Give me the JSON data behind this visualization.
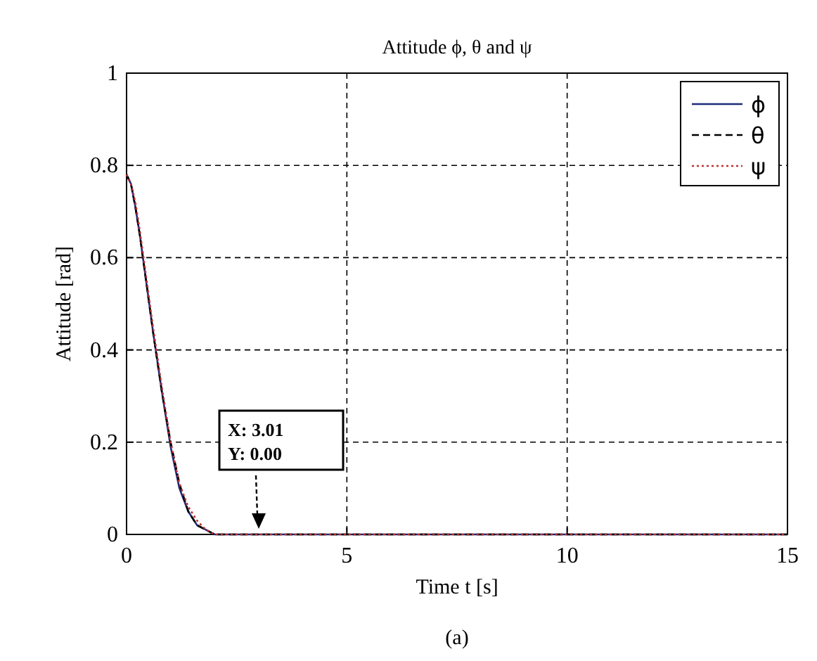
{
  "chart_data": {
    "type": "line",
    "title": "Attitude ϕ, θ and ψ",
    "xlabel": "Time  t [s]",
    "ylabel": "Attitude [rad]",
    "x": [
      0,
      0.1,
      0.2,
      0.3,
      0.4,
      0.6,
      0.8,
      1.0,
      1.2,
      1.4,
      1.6,
      1.8,
      2.0,
      2.2,
      2.5,
      3,
      5,
      10,
      15
    ],
    "series": [
      {
        "name": "ϕ",
        "color": "#1f2a7a",
        "line_style": "solid",
        "values": [
          0.78,
          0.76,
          0.71,
          0.65,
          0.58,
          0.44,
          0.31,
          0.19,
          0.1,
          0.05,
          0.02,
          0.01,
          0,
          0,
          0,
          0,
          0,
          0,
          0
        ]
      },
      {
        "name": "θ",
        "color": "#000000",
        "line_style": "dashed",
        "values": [
          0.78,
          0.76,
          0.71,
          0.65,
          0.58,
          0.44,
          0.31,
          0.2,
          0.11,
          0.05,
          0.02,
          0.01,
          0,
          0,
          0,
          0,
          0,
          0,
          0
        ]
      },
      {
        "name": "ψ",
        "color": "#c03030",
        "line_style": "dotted",
        "values": [
          0.78,
          0.76,
          0.72,
          0.66,
          0.59,
          0.45,
          0.32,
          0.2,
          0.11,
          0.06,
          0.03,
          0.01,
          0,
          0,
          0,
          0,
          0,
          0,
          0
        ]
      }
    ],
    "xlim": [
      0,
      15
    ],
    "xticks": [
      0,
      5,
      10,
      15
    ],
    "ylim": [
      0,
      1
    ],
    "yticks": [
      0,
      0.2,
      0.4,
      0.6,
      0.8,
      1
    ],
    "grid": true,
    "legend": "top right",
    "annotations": [
      "X: 3.01\nY: 0.00",
      "(a)"
    ]
  }
}
